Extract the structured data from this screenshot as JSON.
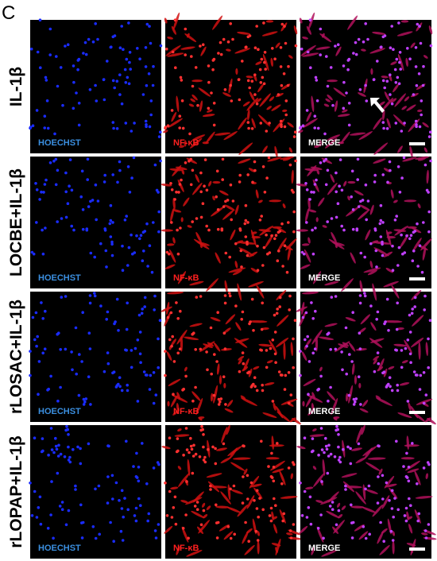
{
  "panel_label": "C",
  "rows": [
    {
      "label": "IL-1β",
      "channels": [
        "HOECHST",
        "NF-κB",
        "MERGE"
      ]
    },
    {
      "label": "LOCBE+IL-1β",
      "channels": [
        "HOECHST",
        "NF-κB",
        "MERGE"
      ]
    },
    {
      "label": "rLOSAC+IL-1β",
      "channels": [
        "HOECHST",
        "NF-κB",
        "MERGE"
      ]
    },
    {
      "label": "rLOPAP+IL-1β",
      "channels": [
        "HOECHST",
        "NF-κB",
        "MERGE"
      ]
    }
  ]
}
